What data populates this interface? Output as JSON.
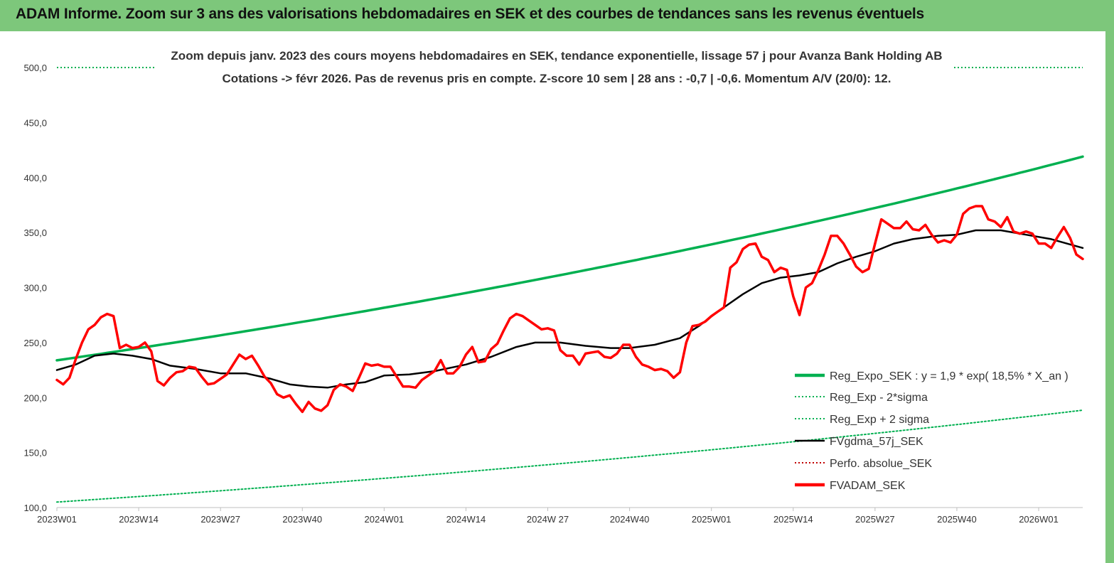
{
  "header": {
    "title": "ADAM Informe. Zoom sur 3 ans des valorisations hebdomadaires en SEK et des courbes de tendances sans les revenus éventuels",
    "background": "#7dc77b"
  },
  "chart_data": {
    "type": "line",
    "title_line1": "Zoom depuis janv. 2023 des cours moyens hebdomadaires en SEK, tendance exponentielle, lissage 57 j pour Avanza Bank Holding AB",
    "title_line2": "Cotations -> févr 2026.  Pas de revenus pris en compte. Z-score 10 sem  | 28 ans : -0,7 | -0,6. Momentum A/V (20/0): 12.",
    "ylim": [
      100,
      500
    ],
    "y_ticks": [
      "100,0",
      "150,0",
      "200,0",
      "250,0",
      "300,0",
      "350,0",
      "400,0",
      "450,0",
      "500,0"
    ],
    "x_ticks": [
      "2023W01",
      "2023W14",
      "2023W27",
      "2023W40",
      "2024W01",
      "2024W14",
      "2024W 27",
      "2024W40",
      "2025W01",
      "2025W14",
      "2025W27",
      "2025W40",
      "2026W01"
    ],
    "x_tick_weeks": [
      0,
      13,
      26,
      39,
      52,
      65,
      78,
      91,
      104,
      117,
      130,
      143,
      156
    ],
    "x_range_weeks": [
      0,
      163
    ],
    "grid": false,
    "legend_position": "bottom-right",
    "series": [
      {
        "name": "Reg_Expo_SEK : y = 1,9 * exp( 18,5% *  X_an )",
        "color": "#00b050",
        "style": "solid-thick",
        "exp_start": 233.8,
        "exp_end": 419.0
      },
      {
        "name": "Reg_Exp - 2*sigma",
        "color": "#00b050",
        "style": "dotted",
        "exp_start": 105.0,
        "exp_end": 188.5
      },
      {
        "name": "Reg_Exp + 2 sigma",
        "color": "#00b050",
        "style": "dotted",
        "exp_start": 500.0,
        "exp_end": 500.0
      },
      {
        "name": "FVgdma_57j_SEK",
        "color": "#000000",
        "style": "solid",
        "x": [
          0,
          3,
          6,
          9,
          12,
          15,
          18,
          22,
          26,
          30,
          34,
          37,
          40,
          43,
          46,
          49,
          52,
          56,
          60,
          65,
          69,
          73,
          76,
          80,
          84,
          88,
          91,
          95,
          99,
          102,
          105,
          109,
          112,
          115,
          118,
          121,
          124,
          127,
          130,
          133,
          136,
          140,
          143,
          146,
          150,
          154,
          158,
          163
        ],
        "values": [
          225,
          230,
          238,
          240,
          238,
          235,
          229,
          226,
          222,
          222,
          217,
          212,
          210,
          209,
          212,
          214,
          220,
          221,
          224,
          230,
          237,
          246,
          250,
          250,
          247,
          245,
          245,
          248,
          254,
          265,
          278,
          294,
          304,
          309,
          311,
          314,
          322,
          328,
          333,
          340,
          344,
          347,
          348,
          352,
          352,
          348,
          344,
          336
        ]
      },
      {
        "name": "Perfo. absolue_SEK",
        "color": "#c00000",
        "style": "dotted",
        "x": [],
        "values": []
      },
      {
        "name": "FVADAM_SEK",
        "color": "#ff0000",
        "style": "solid-thick",
        "x": [
          0,
          1,
          2,
          3,
          4,
          5,
          6,
          7,
          8,
          9,
          10,
          11,
          12,
          13,
          14,
          15,
          16,
          17,
          18,
          19,
          20,
          21,
          22,
          23,
          24,
          25,
          26,
          27,
          28,
          29,
          30,
          31,
          32,
          33,
          34,
          35,
          36,
          37,
          38,
          39,
          40,
          41,
          42,
          43,
          44,
          45,
          46,
          47,
          48,
          49,
          50,
          51,
          52,
          53,
          54,
          55,
          56,
          57,
          58,
          59,
          60,
          61,
          62,
          63,
          64,
          65,
          66,
          67,
          68,
          69,
          70,
          71,
          72,
          73,
          74,
          75,
          76,
          77,
          78,
          79,
          80,
          81,
          82,
          83,
          84,
          85,
          86,
          87,
          88,
          89,
          90,
          91,
          92,
          93,
          94,
          95,
          96,
          97,
          98,
          99,
          100,
          101,
          102,
          103,
          104,
          105,
          106,
          107,
          108,
          109,
          110,
          111,
          112,
          113,
          114,
          115,
          116,
          117,
          118,
          119,
          120,
          121,
          122,
          123,
          124,
          125,
          126,
          127,
          128,
          129,
          130,
          131,
          132,
          133,
          134,
          135,
          136,
          137,
          138,
          139,
          140,
          141,
          142,
          143,
          144,
          145,
          146,
          147,
          148,
          149,
          150,
          151,
          152,
          153,
          154,
          155,
          156,
          157,
          158,
          159,
          160,
          161,
          162,
          163
        ],
        "values": [
          216,
          212,
          218,
          235,
          250,
          262,
          266,
          273,
          276,
          274,
          245,
          248,
          245,
          246,
          250,
          242,
          215,
          211,
          218,
          223,
          224,
          228,
          227,
          219,
          212,
          213,
          217,
          221,
          230,
          239,
          235,
          238,
          229,
          219,
          213,
          203,
          200,
          202,
          194,
          187,
          196,
          190,
          188,
          193,
          207,
          212,
          210,
          206,
          218,
          231,
          229,
          230,
          228,
          228,
          219,
          210,
          210,
          209,
          216,
          220,
          224,
          234,
          222,
          222,
          228,
          239,
          246,
          232,
          233,
          244,
          249,
          261,
          272,
          276,
          274,
          270,
          266,
          262,
          263,
          261,
          243,
          238,
          238,
          230,
          240,
          241,
          242,
          237,
          236,
          240,
          248,
          248,
          237,
          230,
          228,
          225,
          226,
          224,
          218,
          223,
          250,
          265,
          266,
          269,
          274,
          278,
          282,
          318,
          323,
          335,
          339,
          340,
          328,
          325,
          314,
          318,
          316,
          292,
          275,
          300,
          304,
          316,
          330,
          347,
          347,
          340,
          330,
          319,
          314,
          317,
          340,
          362,
          358,
          354,
          354,
          360,
          353,
          352,
          357,
          348,
          341,
          343,
          341,
          348,
          367,
          372,
          374,
          374,
          362,
          360,
          355,
          364,
          351,
          349,
          351,
          349,
          340,
          340,
          336,
          346,
          355,
          345,
          330,
          326
        ]
      }
    ]
  }
}
